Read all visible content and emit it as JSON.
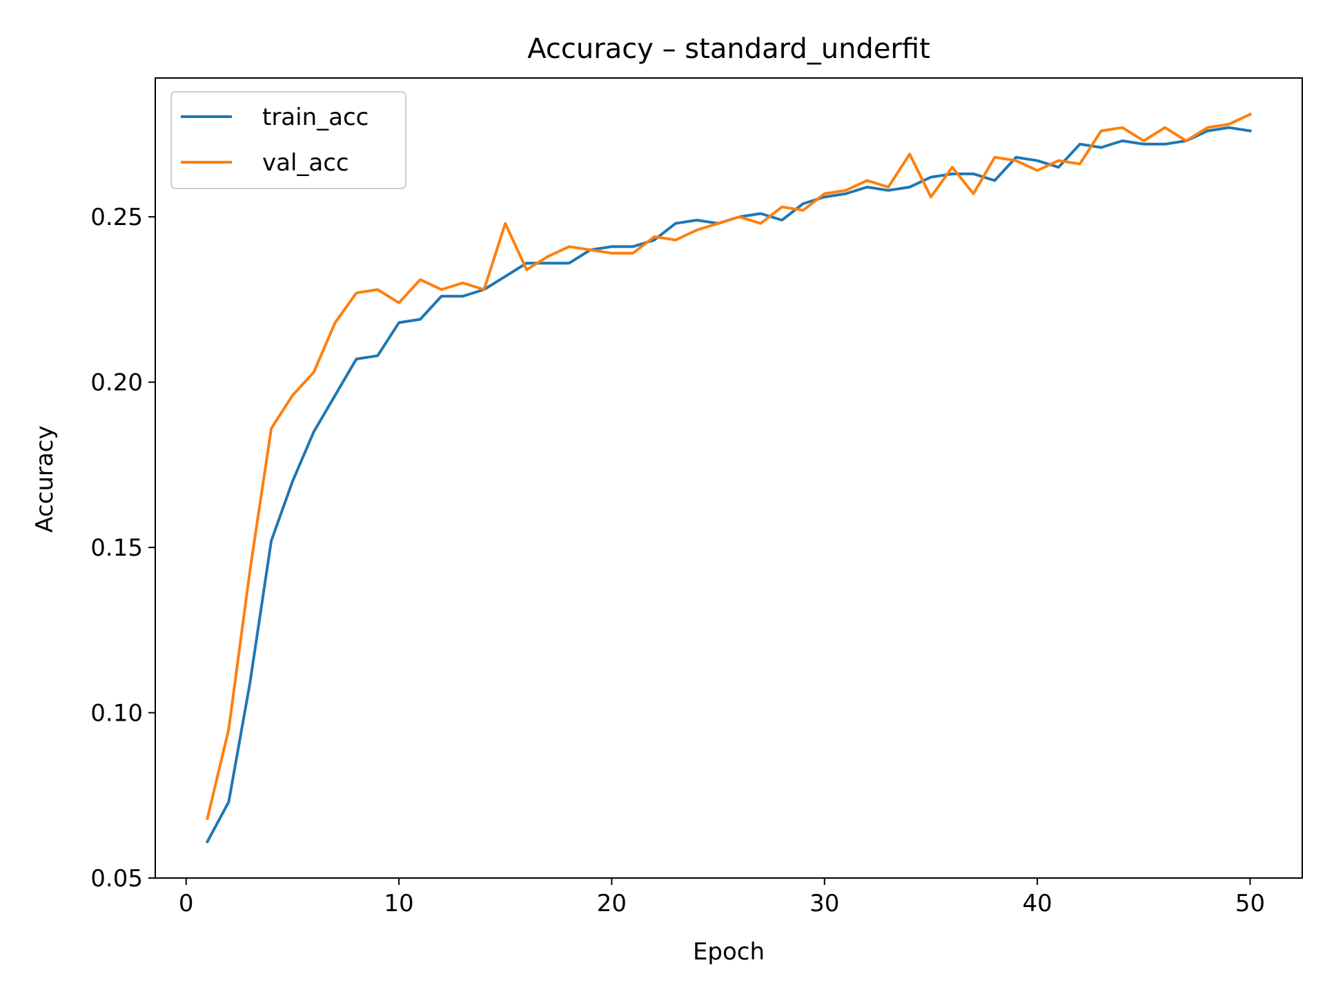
{
  "chart_data": {
    "type": "line",
    "title": "Accuracy – standard_underfit",
    "xlabel": "Epoch",
    "ylabel": "Accuracy",
    "xlim": [
      -1.45,
      52.45
    ],
    "ylim": [
      0.05,
      0.292
    ],
    "xticks": [
      0,
      10,
      20,
      30,
      40,
      50
    ],
    "xtick_labels": [
      "0",
      "10",
      "20",
      "30",
      "40",
      "50"
    ],
    "yticks": [
      0.05,
      0.1,
      0.15,
      0.2,
      0.25
    ],
    "ytick_labels": [
      "0.05",
      "0.10",
      "0.15",
      "0.20",
      "0.25"
    ],
    "grid": false,
    "legend_position": "upper left",
    "x": [
      1,
      2,
      3,
      4,
      5,
      6,
      7,
      8,
      9,
      10,
      11,
      12,
      13,
      14,
      15,
      16,
      17,
      18,
      19,
      20,
      21,
      22,
      23,
      24,
      25,
      26,
      27,
      28,
      29,
      30,
      31,
      32,
      33,
      34,
      35,
      36,
      37,
      38,
      39,
      40,
      41,
      42,
      43,
      44,
      45,
      46,
      47,
      48,
      49,
      50
    ],
    "series": [
      {
        "name": "train_acc",
        "color": "#1f77b4",
        "values": [
          0.061,
          0.073,
          0.109,
          0.152,
          0.17,
          0.185,
          0.196,
          0.207,
          0.208,
          0.218,
          0.219,
          0.226,
          0.226,
          0.228,
          0.232,
          0.236,
          0.236,
          0.236,
          0.24,
          0.241,
          0.241,
          0.243,
          0.248,
          0.249,
          0.248,
          0.25,
          0.251,
          0.249,
          0.254,
          0.256,
          0.257,
          0.259,
          0.258,
          0.259,
          0.262,
          0.263,
          0.263,
          0.261,
          0.268,
          0.267,
          0.265,
          0.272,
          0.271,
          0.273,
          0.272,
          0.272,
          0.273,
          0.276,
          0.277,
          0.276
        ]
      },
      {
        "name": "val_acc",
        "color": "#ff7f0e",
        "values": [
          0.068,
          0.095,
          0.143,
          0.186,
          0.196,
          0.203,
          0.218,
          0.227,
          0.228,
          0.224,
          0.231,
          0.228,
          0.23,
          0.228,
          0.248,
          0.234,
          0.238,
          0.241,
          0.24,
          0.239,
          0.239,
          0.244,
          0.243,
          0.246,
          0.248,
          0.25,
          0.248,
          0.253,
          0.252,
          0.257,
          0.258,
          0.261,
          0.259,
          0.269,
          0.256,
          0.265,
          0.257,
          0.268,
          0.267,
          0.264,
          0.267,
          0.266,
          0.276,
          0.277,
          0.273,
          0.277,
          0.273,
          0.277,
          0.278,
          0.281
        ]
      }
    ]
  }
}
